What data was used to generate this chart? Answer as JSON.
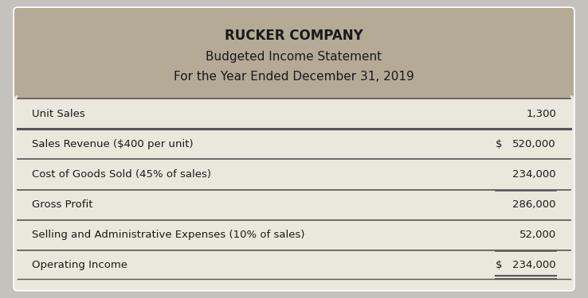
{
  "title1": "RUCKER COMPANY",
  "title2": "Budgeted Income Statement",
  "title3": "For the Year Ended December 31, 2019",
  "rows": [
    {
      "label": "Unit Sales",
      "value": "1,300",
      "dollar": false,
      "bold": false,
      "double_underline": false,
      "single_line_above_val": false,
      "thick_top": false
    },
    {
      "label": "Sales Revenue ($400 per unit)",
      "value": "520,000",
      "dollar": true,
      "bold": false,
      "double_underline": false,
      "single_line_above_val": false,
      "thick_top": true
    },
    {
      "label": "Cost of Goods Sold (45% of sales)",
      "value": "234,000",
      "dollar": false,
      "bold": false,
      "double_underline": false,
      "single_line_above_val": false,
      "thick_top": false
    },
    {
      "label": "Gross Profit",
      "value": "286,000",
      "dollar": false,
      "bold": false,
      "double_underline": false,
      "single_line_above_val": true,
      "thick_top": false
    },
    {
      "label": "Selling and Administrative Expenses (10% of sales)",
      "value": "52,000",
      "dollar": false,
      "bold": false,
      "double_underline": false,
      "single_line_above_val": false,
      "thick_top": false
    },
    {
      "label": "Operating Income",
      "value": "234,000",
      "dollar": true,
      "bold": false,
      "double_underline": true,
      "single_line_above_val": true,
      "thick_top": false
    }
  ],
  "header_bg": "#b5aa96",
  "body_bg": "#eae8dc",
  "outer_bg": "#c5c1bc",
  "text_color": "#1a1a1a",
  "line_color": "#555555",
  "card_edge": "#ffffff"
}
